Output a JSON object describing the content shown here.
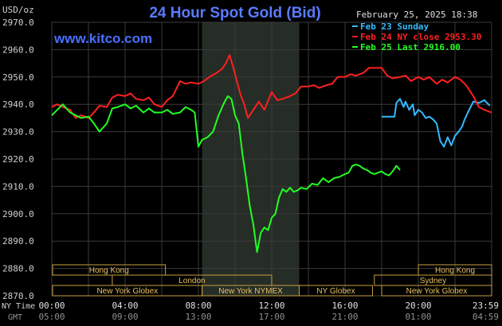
{
  "chart_data": {
    "type": "line",
    "title": "24 Hour Spot Gold (Bid)",
    "site": "www.kitco.com",
    "unit_label": "USD/oz",
    "datetime": "February 25, 2025 18:38",
    "ylim": [
      2870,
      2970
    ],
    "y_ticks": [
      "2970.0",
      "2960.0",
      "2950.0",
      "2940.0",
      "2930.0",
      "2920.0",
      "2910.0",
      "2900.0",
      "2890.0",
      "2880.0",
      "2870.0"
    ],
    "x_ticks_ny": [
      "00:00",
      "04:00",
      "08:00",
      "12:00",
      "16:00",
      "20:00",
      "23:59"
    ],
    "x_ticks_gmt": [
      "05:00",
      "09:00",
      "13:00",
      "17:00",
      "21:00",
      "01:00",
      "04:59"
    ],
    "x_row_label_ny": "NY Time",
    "x_row_label_gmt": "GMT",
    "nymex_shade": [
      8.2,
      13.5
    ],
    "series": [
      {
        "name": "Feb 23 Sunday",
        "color": "#33bbff",
        "x": [
          18.0,
          18.2,
          18.5,
          18.7,
          18.8,
          19.0,
          19.2,
          19.3,
          19.5,
          19.7,
          19.8,
          20.0,
          20.2,
          20.4,
          20.6,
          20.8,
          21.0,
          21.2,
          21.4,
          21.6,
          21.8,
          22.0,
          22.2,
          22.4,
          22.5,
          22.7,
          23.0,
          23.3,
          23.6,
          23.9
        ],
        "y": [
          2935.5,
          2935.5,
          2935.5,
          2935.5,
          2940.5,
          2942.0,
          2939.0,
          2941.0,
          2938.0,
          2940.0,
          2936.0,
          2938.0,
          2937.0,
          2935.0,
          2935.5,
          2934.5,
          2933.0,
          2926.5,
          2924.5,
          2928.0,
          2925.0,
          2928.5,
          2930.0,
          2932.0,
          2934.0,
          2937.0,
          2941.0,
          2940.5,
          2941.5,
          2939.5
        ]
      },
      {
        "name": "Feb 24 NY close 2953.30",
        "color": "#ff2020",
        "x": [
          0.0,
          0.3,
          0.6,
          1.0,
          1.3,
          1.6,
          2.0,
          2.3,
          2.6,
          3.0,
          3.3,
          3.6,
          4.0,
          4.3,
          4.6,
          5.0,
          5.3,
          5.6,
          6.0,
          6.3,
          6.6,
          7.0,
          7.3,
          7.6,
          8.0,
          8.3,
          8.6,
          9.0,
          9.3,
          9.5,
          9.7,
          9.9,
          10.1,
          10.3,
          10.5,
          10.7,
          11.0,
          11.3,
          11.6,
          12.0,
          12.3,
          12.6,
          13.0,
          13.3,
          13.6,
          14.0,
          14.3,
          14.6,
          15.0,
          15.3,
          15.6,
          16.0,
          16.3,
          16.6,
          17.0,
          17.3,
          17.6,
          18.0,
          18.3,
          18.6,
          19.0,
          19.3,
          19.6,
          20.0,
          20.3,
          20.6,
          21.0,
          21.3,
          21.6,
          22.0,
          22.3,
          22.6,
          23.0,
          23.3,
          23.6,
          23.99
        ],
        "y": [
          2939.0,
          2940.0,
          2939.0,
          2938.0,
          2935.0,
          2936.0,
          2935.0,
          2937.0,
          2939.5,
          2939.0,
          2942.5,
          2943.5,
          2943.0,
          2944.0,
          2942.0,
          2941.5,
          2942.5,
          2940.0,
          2939.0,
          2941.5,
          2943.0,
          2948.5,
          2947.5,
          2948.0,
          2947.5,
          2948.5,
          2950.0,
          2951.5,
          2953.0,
          2955.0,
          2958.0,
          2953.5,
          2948.5,
          2943.5,
          2940.0,
          2935.0,
          2938.0,
          2941.0,
          2938.0,
          2944.5,
          2941.5,
          2942.0,
          2943.0,
          2944.0,
          2946.5,
          2946.5,
          2947.0,
          2946.0,
          2947.0,
          2947.5,
          2950.0,
          2950.0,
          2951.0,
          2950.5,
          2951.5,
          2953.3,
          2953.3,
          2953.3,
          2950.5,
          2949.5,
          2950.0,
          2950.5,
          2948.5,
          2950.0,
          2949.0,
          2950.0,
          2947.5,
          2949.0,
          2948.0,
          2950.0,
          2949.0,
          2947.0,
          2943.0,
          2939.0,
          2938.0,
          2937.0
        ]
      },
      {
        "name": "Feb 25 Last 2916.00",
        "color": "#22ff22",
        "x": [
          0.0,
          0.3,
          0.6,
          1.0,
          1.3,
          1.6,
          2.0,
          2.3,
          2.6,
          3.0,
          3.3,
          3.6,
          4.0,
          4.3,
          4.6,
          5.0,
          5.3,
          5.6,
          6.0,
          6.3,
          6.6,
          7.0,
          7.3,
          7.6,
          7.8,
          8.0,
          8.2,
          8.5,
          8.8,
          9.1,
          9.4,
          9.6,
          9.8,
          10.0,
          10.2,
          10.4,
          10.6,
          10.8,
          11.0,
          11.2,
          11.4,
          11.6,
          11.8,
          12.0,
          12.2,
          12.4,
          12.6,
          12.8,
          13.0,
          13.2,
          13.4,
          13.6,
          13.9,
          14.2,
          14.5,
          14.8,
          15.1,
          15.4,
          15.7,
          16.0,
          16.2,
          16.4,
          16.6,
          16.8,
          17.0,
          17.2,
          17.4,
          17.6,
          17.8,
          18.0,
          18.2,
          18.4,
          18.6,
          18.8,
          19.0
        ],
        "y": [
          2936.0,
          2938.0,
          2940.0,
          2937.0,
          2936.0,
          2935.0,
          2935.5,
          2933.0,
          2930.0,
          2933.0,
          2938.5,
          2939.0,
          2940.0,
          2938.5,
          2939.5,
          2937.0,
          2938.5,
          2937.0,
          2937.0,
          2938.0,
          2936.5,
          2937.0,
          2939.0,
          2938.0,
          2937.0,
          2924.5,
          2927.0,
          2928.0,
          2930.0,
          2936.0,
          2940.5,
          2943.0,
          2942.0,
          2936.0,
          2933.0,
          2922.0,
          2913.0,
          2903.0,
          2896.0,
          2886.0,
          2893.0,
          2895.0,
          2894.0,
          2898.5,
          2900.0,
          2906.0,
          2909.0,
          2908.0,
          2909.5,
          2908.0,
          2908.5,
          2909.5,
          2909.0,
          2911.0,
          2910.5,
          2913.0,
          2911.5,
          2913.0,
          2913.5,
          2914.5,
          2915.0,
          2917.5,
          2918.0,
          2917.5,
          2916.5,
          2916.0,
          2915.0,
          2914.5,
          2915.0,
          2915.5,
          2914.5,
          2914.0,
          2915.5,
          2917.5,
          2916.0
        ]
      }
    ],
    "sessions": [
      {
        "label": "Hong Kong",
        "start": -0.3,
        "end": 6.2,
        "row": 0
      },
      {
        "label": "Hong Kong",
        "start": 20.0,
        "end": 24.0,
        "row": 0
      },
      {
        "label": "London",
        "start": 3.3,
        "end": 12.0,
        "row": 1
      },
      {
        "label": "Sydney",
        "start": 17.6,
        "end": 24.0,
        "row": 1
      },
      {
        "label": "New York Globex",
        "start": -0.3,
        "end": 8.2,
        "row": 2
      },
      {
        "label": "New York NYMEX",
        "start": 8.2,
        "end": 13.5,
        "row": 2
      },
      {
        "label": "NY Globex",
        "start": 13.5,
        "end": 17.5,
        "row": 2
      },
      {
        "label": "New York Globex",
        "start": 18.0,
        "end": 24.0,
        "row": 2
      }
    ]
  }
}
